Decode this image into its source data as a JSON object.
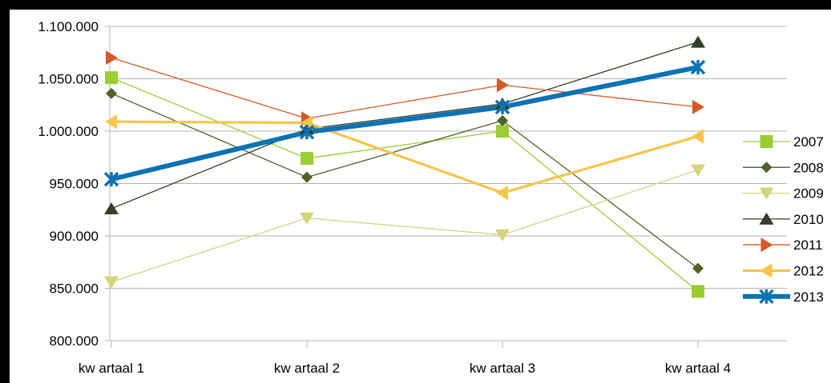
{
  "chart_data": {
    "type": "line",
    "title": "",
    "xlabel": "",
    "ylabel": "",
    "categories": [
      "kw artaal 1",
      "kw artaal 2",
      "kw artaal 3",
      "kw artaal 4"
    ],
    "ylim": [
      800000,
      1100000
    ],
    "yticks": [
      800000,
      850000,
      900000,
      950000,
      1000000,
      1050000,
      1100000
    ],
    "ytick_labels": [
      "800.000",
      "850.000",
      "900.000",
      "950.000",
      "1.000.000",
      "1.050.000",
      "1.100.000"
    ],
    "grid": true,
    "legend_position": "right",
    "series": [
      {
        "name": "2007",
        "color": "#9acd32",
        "marker": "square",
        "weight": "thin",
        "values": [
          1051000,
          974000,
          1000000,
          847000
        ]
      },
      {
        "name": "2008",
        "color": "#4f6228",
        "marker": "diamond",
        "weight": "thin",
        "values": [
          1036000,
          956000,
          1010000,
          869000
        ]
      },
      {
        "name": "2009",
        "color": "#d4d47a",
        "marker": "triangle-down",
        "weight": "thin",
        "values": [
          856000,
          917000,
          901000,
          963000
        ]
      },
      {
        "name": "2010",
        "color": "#333f24",
        "marker": "triangle-up",
        "weight": "thin",
        "values": [
          926000,
          1002000,
          1026000,
          1085000
        ]
      },
      {
        "name": "2011",
        "color": "#d55a27",
        "marker": "triangle-right",
        "weight": "thin",
        "values": [
          1070000,
          1012000,
          1044000,
          1023000
        ]
      },
      {
        "name": "2012",
        "color": "#f6c549",
        "marker": "triangle-left",
        "weight": "thick",
        "values": [
          1009000,
          1008000,
          941000,
          995000
        ]
      },
      {
        "name": "2013",
        "color": "#0b72b5",
        "marker": "x-star",
        "weight": "heavy",
        "values": [
          954000,
          999000,
          1023000,
          1061000
        ]
      }
    ]
  }
}
